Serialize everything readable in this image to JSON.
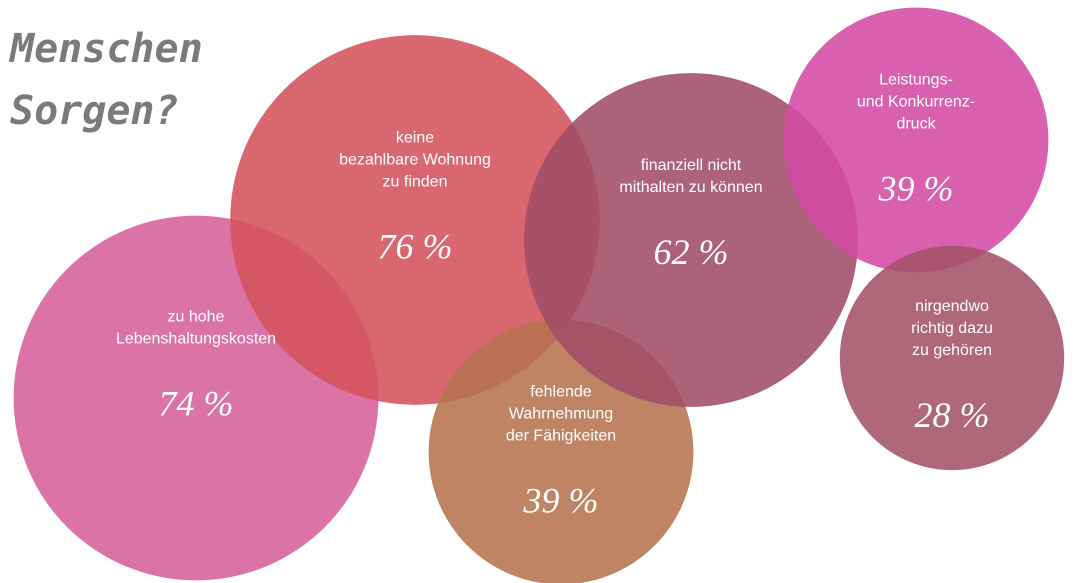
{
  "chart_data": {
    "type": "bubble",
    "title": [
      "Menschen",
      "Sorgen?"
    ],
    "categories": [
      [
        "zu hohe",
        "Lebenshaltungskosten"
      ],
      [
        "keine",
        "bezahlbare Wohnung",
        "zu finden"
      ],
      [
        "fehlende",
        "Wahrnehmung",
        "der Fähigkeiten"
      ],
      [
        "finanziell nicht",
        "mithalten zu können"
      ],
      [
        "Leistungs-",
        "und Konkurrenz-",
        "druck"
      ],
      [
        "nirgendwo",
        "richtig dazu",
        "zu gehören"
      ]
    ],
    "values": [
      74,
      76,
      39,
      62,
      39,
      28
    ],
    "value_labels": [
      "74 %",
      "76 %",
      "39 %",
      "62 %",
      "39 %",
      "28 %"
    ],
    "colors": [
      "#d6609a",
      "#d4525c",
      "#b5734f",
      "#a14d66",
      "#d44aa3",
      "#a4526a"
    ]
  }
}
